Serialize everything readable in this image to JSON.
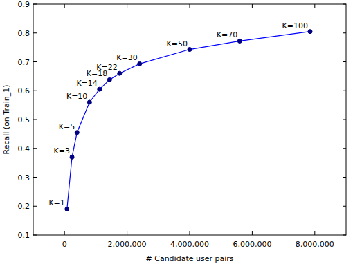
{
  "chart_data": {
    "type": "line",
    "x_label": "# Candidate user pairs",
    "y_label": "Recall (on Train_1)",
    "x": [
      80000,
      240000,
      400000,
      800000,
      1120000,
      1440000,
      1760000,
      2400000,
      4000000,
      5600000,
      7850000
    ],
    "series": [
      {
        "name": "Recall",
        "color": "#0000ff",
        "marker": "circle",
        "line_style": "solid",
        "values": [
          0.19,
          0.37,
          0.455,
          0.56,
          0.605,
          0.638,
          0.66,
          0.693,
          0.743,
          0.772,
          0.805
        ]
      }
    ],
    "annotations": [
      "K=1",
      "K=3",
      "K=5",
      "K=10",
      "K=14",
      "K=18",
      "K=22",
      "K=30",
      "K=50",
      "K=70",
      "K=100"
    ],
    "xlim": [
      -1000000,
      9000000
    ],
    "xticks": [
      0,
      {
        "value": 2000000,
        "label": "2,000,000"
      },
      {
        "value": 4000000,
        "label": "4,000,000"
      },
      {
        "value": 6000000,
        "label": "6,000,000"
      },
      {
        "value": 8000000,
        "label": "8,000,000"
      }
    ],
    "ylim": [
      0.1,
      0.9
    ],
    "yticks": [
      0.1,
      0.2,
      0.3,
      0.4,
      0.5,
      0.6,
      0.7,
      0.8,
      0.9
    ],
    "grid": false
  }
}
